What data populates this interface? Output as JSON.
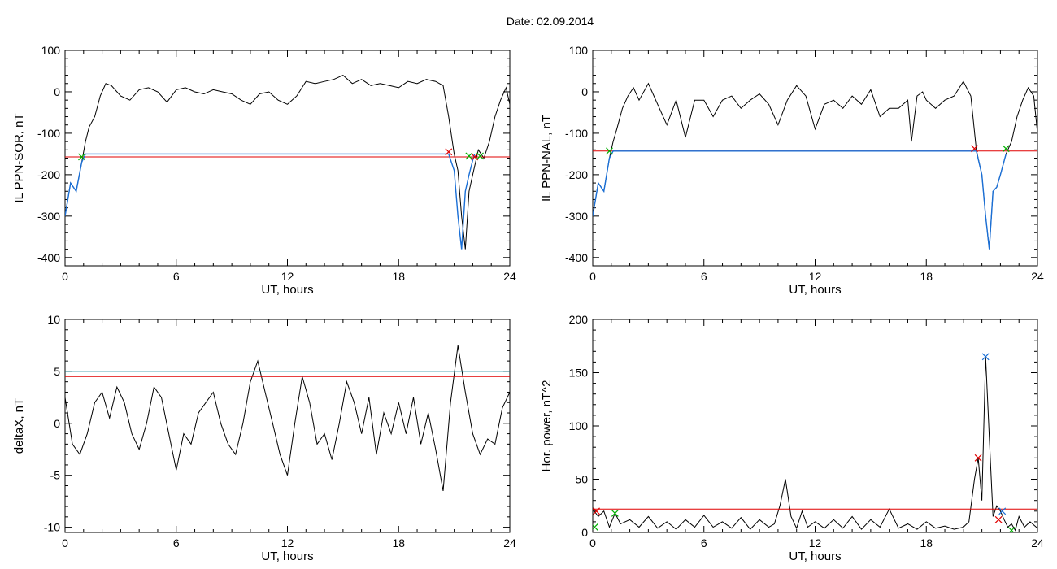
{
  "title": "Date:  02.09.2014",
  "colors": {
    "black": "#000000",
    "red": "#e00000",
    "green": "#00b000",
    "blue": "#1a6fd6",
    "cyan": "#1e8fa0"
  },
  "chart_data": [
    {
      "type": "line",
      "xlabel": "UT, hours",
      "ylabel": "IL PPN-SOR, nT",
      "xlim": [
        0,
        24
      ],
      "ylim": [
        -420,
        100
      ],
      "xticks": [
        0,
        6,
        12,
        18,
        24
      ],
      "yticks": [
        -400,
        -300,
        -200,
        -100,
        0,
        100
      ],
      "series": [
        {
          "color": "black",
          "x": [
            0,
            0.3,
            0.6,
            0.9,
            1.1,
            1.3,
            1.6,
            1.9,
            2.2,
            2.5,
            3,
            3.5,
            4,
            4.5,
            5,
            5.5,
            6,
            6.5,
            7,
            7.5,
            8,
            8.5,
            9,
            9.5,
            10,
            10.5,
            11,
            11.5,
            12,
            12.5,
            13,
            13.5,
            14,
            14.5,
            15,
            15.5,
            16,
            16.5,
            17,
            17.5,
            18,
            18.5,
            19,
            19.5,
            20,
            20.4,
            20.7,
            21.0,
            21.2,
            21.4,
            21.6,
            21.8,
            22.0,
            22.3,
            22.6,
            22.9,
            23.2,
            23.5,
            23.8,
            24
          ],
          "y": [
            -300,
            -220,
            -240,
            -170,
            -120,
            -85,
            -60,
            -10,
            20,
            15,
            -10,
            -20,
            5,
            10,
            0,
            -25,
            5,
            10,
            0,
            -5,
            5,
            0,
            -5,
            -20,
            -30,
            -5,
            0,
            -20,
            -30,
            -10,
            25,
            20,
            25,
            30,
            40,
            20,
            30,
            15,
            20,
            15,
            10,
            25,
            20,
            30,
            25,
            15,
            -60,
            -150,
            -190,
            -300,
            -380,
            -240,
            -200,
            -140,
            -160,
            -120,
            -60,
            -20,
            10,
            -30
          ]
        },
        {
          "color": "red",
          "x": [
            0,
            24
          ],
          "y": [
            -157,
            -157
          ]
        },
        {
          "color": "blue",
          "x": [
            0,
            0.3,
            0.6,
            0.9,
            1.1,
            20.7,
            21.0,
            21.2,
            21.4,
            21.6,
            21.8,
            22.0,
            22.1
          ],
          "y": [
            -300,
            -220,
            -240,
            -170,
            -150,
            -150,
            -190,
            -300,
            -380,
            -240,
            -200,
            -165,
            -150
          ]
        }
      ],
      "markers": [
        {
          "color": "green",
          "x": 0.9,
          "y": -157
        },
        {
          "color": "red",
          "x": 20.7,
          "y": -145
        },
        {
          "color": "green",
          "x": 21.8,
          "y": -155
        },
        {
          "color": "red",
          "x": 22.1,
          "y": -157
        },
        {
          "color": "green",
          "x": 22.4,
          "y": -155
        }
      ]
    },
    {
      "type": "line",
      "xlabel": "UT, hours",
      "ylabel": "IL PPN-NAL, nT",
      "xlim": [
        0,
        24
      ],
      "ylim": [
        -420,
        100
      ],
      "xticks": [
        0,
        6,
        12,
        18,
        24
      ],
      "yticks": [
        -400,
        -300,
        -200,
        -100,
        0,
        100
      ],
      "series": [
        {
          "color": "black",
          "x": [
            0,
            0.3,
            0.6,
            0.9,
            1.1,
            1.3,
            1.6,
            1.9,
            2.2,
            2.5,
            3,
            3.5,
            4,
            4.5,
            5,
            5.5,
            6,
            6.5,
            7,
            7.5,
            8,
            8.5,
            9,
            9.5,
            10,
            10.5,
            11,
            11.5,
            12,
            12.5,
            13,
            13.5,
            14,
            14.5,
            15,
            15.5,
            16,
            16.5,
            17,
            17.2,
            17.5,
            17.8,
            18,
            18.5,
            19,
            19.5,
            20,
            20.4,
            20.7,
            21.0,
            21.2,
            21.4,
            21.6,
            21.8,
            22.0,
            22.3,
            22.6,
            22.9,
            23.2,
            23.5,
            23.8,
            24
          ],
          "y": [
            -300,
            -220,
            -240,
            -160,
            -120,
            -90,
            -40,
            -10,
            10,
            -20,
            20,
            -30,
            -80,
            -20,
            -110,
            -20,
            -20,
            -60,
            -20,
            -10,
            -40,
            -20,
            -5,
            -30,
            -80,
            -20,
            15,
            -10,
            -90,
            -30,
            -20,
            -40,
            -10,
            -30,
            5,
            -60,
            -40,
            -40,
            -20,
            -120,
            -10,
            0,
            -20,
            -40,
            -20,
            -10,
            25,
            -10,
            -140,
            -200,
            -300,
            -380,
            -240,
            -230,
            -200,
            -150,
            -120,
            -60,
            -20,
            10,
            -10,
            -100
          ]
        },
        {
          "color": "red",
          "x": [
            0,
            24
          ],
          "y": [
            -143,
            -143
          ]
        },
        {
          "color": "blue",
          "x": [
            0,
            0.3,
            0.6,
            0.9,
            1.1,
            20.7,
            21.0,
            21.2,
            21.4,
            21.6,
            21.8,
            22.0,
            22.3
          ],
          "y": [
            -300,
            -220,
            -240,
            -160,
            -143,
            -143,
            -200,
            -300,
            -380,
            -240,
            -230,
            -200,
            -150
          ]
        }
      ],
      "markers": [
        {
          "color": "green",
          "x": 0.9,
          "y": -143
        },
        {
          "color": "red",
          "x": 20.6,
          "y": -137
        },
        {
          "color": "green",
          "x": 22.3,
          "y": -137
        }
      ]
    },
    {
      "type": "line",
      "xlabel": "UT, hours",
      "ylabel": "deltaX, nT",
      "xlim": [
        0,
        24
      ],
      "ylim": [
        -10.5,
        10
      ],
      "xticks": [
        0,
        6,
        12,
        18,
        24
      ],
      "yticks": [
        -10,
        -5,
        0,
        5,
        10
      ],
      "series": [
        {
          "color": "black",
          "x": [
            0,
            0.4,
            0.8,
            1.2,
            1.6,
            2.0,
            2.4,
            2.8,
            3.2,
            3.6,
            4.0,
            4.4,
            4.8,
            5.2,
            5.6,
            6.0,
            6.4,
            6.8,
            7.2,
            7.6,
            8.0,
            8.4,
            8.8,
            9.2,
            9.6,
            10.0,
            10.4,
            10.8,
            11.2,
            11.6,
            12.0,
            12.4,
            12.8,
            13.2,
            13.6,
            14.0,
            14.4,
            14.8,
            15.2,
            15.6,
            16.0,
            16.4,
            16.8,
            17.2,
            17.6,
            18.0,
            18.4,
            18.8,
            19.2,
            19.6,
            20.0,
            20.4,
            20.8,
            21.2,
            21.6,
            22.0,
            22.4,
            22.8,
            23.2,
            23.6,
            24
          ],
          "y": [
            2.5,
            -2,
            -3,
            -1,
            2,
            3,
            0.5,
            3.5,
            2,
            -1,
            -2.5,
            0,
            3.5,
            2.5,
            -1,
            -4.5,
            -1,
            -2,
            1,
            2,
            3,
            0,
            -2,
            -3,
            0,
            4,
            6,
            3,
            0,
            -3,
            -5,
            0,
            4.5,
            2,
            -2,
            -1,
            -3.5,
            0,
            4,
            2,
            -1,
            2.5,
            -3,
            1,
            -1,
            2,
            -1,
            2.5,
            -2,
            1,
            -2.5,
            -6.5,
            2,
            7.5,
            3,
            -1,
            -3,
            -1.5,
            -2,
            1.5,
            3
          ]
        },
        {
          "color": "cyan",
          "x": [
            0,
            24
          ],
          "y": [
            5,
            5
          ]
        },
        {
          "color": "red",
          "x": [
            0,
            24
          ],
          "y": [
            4.5,
            4.5
          ]
        }
      ],
      "markers": []
    },
    {
      "type": "line",
      "xlabel": "UT, hours",
      "ylabel": "Hor. power, nT^2",
      "xlim": [
        0,
        24
      ],
      "ylim": [
        0,
        200
      ],
      "xticks": [
        0,
        6,
        12,
        18,
        24
      ],
      "yticks": [
        0,
        50,
        100,
        150,
        200
      ],
      "series": [
        {
          "color": "black",
          "x": [
            0,
            0.3,
            0.6,
            0.9,
            1.2,
            1.5,
            2,
            2.5,
            3,
            3.5,
            4,
            4.5,
            5,
            5.5,
            6,
            6.5,
            7,
            7.5,
            8,
            8.5,
            9,
            9.5,
            9.8,
            10.1,
            10.4,
            10.7,
            11,
            11.3,
            11.6,
            12,
            12.5,
            13,
            13.5,
            14,
            14.5,
            15,
            15.5,
            16,
            16.5,
            17,
            17.5,
            18,
            18.5,
            19,
            19.5,
            20,
            20.3,
            20.6,
            20.8,
            21.0,
            21.2,
            21.4,
            21.6,
            21.8,
            22.0,
            22.2,
            22.4,
            22.6,
            22.8,
            23,
            23.3,
            23.6,
            24
          ],
          "y": [
            22,
            15,
            20,
            5,
            18,
            8,
            12,
            5,
            15,
            4,
            10,
            3,
            12,
            5,
            16,
            5,
            10,
            4,
            14,
            3,
            12,
            5,
            8,
            25,
            50,
            15,
            4,
            20,
            5,
            10,
            4,
            12,
            4,
            15,
            3,
            12,
            5,
            22,
            4,
            8,
            3,
            10,
            4,
            6,
            3,
            5,
            10,
            50,
            70,
            30,
            165,
            90,
            15,
            25,
            20,
            12,
            5,
            8,
            2,
            15,
            5,
            10,
            4
          ]
        },
        {
          "color": "red",
          "x": [
            0,
            24
          ],
          "y": [
            22,
            22
          ]
        }
      ],
      "markers": [
        {
          "color": "green",
          "x": 0.1,
          "y": 5
        },
        {
          "color": "red",
          "x": 0.2,
          "y": 20
        },
        {
          "color": "green",
          "x": 1.2,
          "y": 18
        },
        {
          "color": "red",
          "x": 20.8,
          "y": 70
        },
        {
          "color": "blue",
          "x": 21.2,
          "y": 165
        },
        {
          "color": "red",
          "x": 21.9,
          "y": 12
        },
        {
          "color": "blue",
          "x": 22.1,
          "y": 20
        },
        {
          "color": "green",
          "x": 22.6,
          "y": 2
        }
      ]
    }
  ]
}
